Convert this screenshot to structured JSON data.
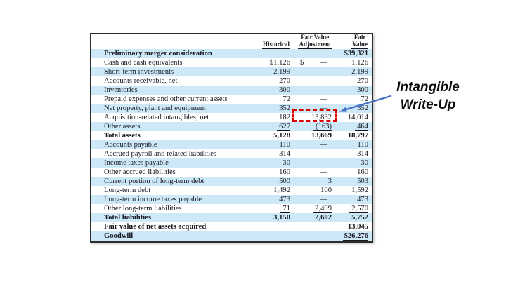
{
  "table": {
    "columns": {
      "historical": "Historical",
      "adjustment_line1": "Fair Value",
      "adjustment_line2": "Adjustment",
      "fair_value_line1": "Fair",
      "fair_value_line2": "Value"
    },
    "rows": [
      {
        "label": "Preliminary merger consideration",
        "h": "",
        "a": "",
        "f": "$39,321",
        "bold": true,
        "u_f": true
      },
      {
        "label": "Cash and cash equivalents",
        "h": "$1,126",
        "a": "—",
        "f": "1,126",
        "pre_a": "$"
      },
      {
        "label": "Short-term investments",
        "h": "2,199",
        "a": "—",
        "f": "2,199"
      },
      {
        "label": "Accounts receivable, net",
        "h": "270",
        "a": "—",
        "f": "270"
      },
      {
        "label": "Inventories",
        "h": "300",
        "a": "—",
        "f": "300"
      },
      {
        "label": "Prepaid expenses and other current assets",
        "h": "72",
        "a": "—",
        "f": "72"
      },
      {
        "label": "Net property, plant and equipment",
        "h": "352",
        "a": "—",
        "f": "352"
      },
      {
        "label": "Acquisition-related intangibles, net",
        "h": "182",
        "a": "13,832",
        "f": "14,014",
        "box_a": true
      },
      {
        "label": "Other assets",
        "h": "627",
        "a": "(163)",
        "f": "464",
        "u_h": true,
        "u_a": true,
        "u_f": true
      },
      {
        "label": "Total assets",
        "h": "5,128",
        "a": "13,669",
        "f": "18,797",
        "bold": true
      },
      {
        "label": "Accounts payable",
        "h": "110",
        "a": "—",
        "f": "110"
      },
      {
        "label": "Accrued payroll and related liabilities",
        "h": "314",
        "a": "",
        "f": "314"
      },
      {
        "label": "Income taxes payable",
        "h": "30",
        "a": "—",
        "f": "30"
      },
      {
        "label": "Other accrued liabilities",
        "h": "160",
        "a": "—",
        "f": "160"
      },
      {
        "label": "Current portion of long-term debt",
        "h": "500",
        "a": "3",
        "f": "503"
      },
      {
        "label": "Long-term debt",
        "h": "1,492",
        "a": "100",
        "f": "1,592"
      },
      {
        "label": "Long-term income taxes payable",
        "h": "473",
        "a": "—",
        "f": "473"
      },
      {
        "label": "Other long-term liabilities",
        "h": "71",
        "a": "2,499",
        "f": "2,570",
        "u_h": true,
        "u_a": true,
        "u_f": true
      },
      {
        "label": "Total liabilities",
        "h": "3,150",
        "a": "2,602",
        "f": "5,752",
        "bold": true,
        "u_f": true
      },
      {
        "label": "Fair value of net assets acquired",
        "h": "",
        "a": "",
        "f": "13,045",
        "bold": true,
        "u_f": true
      },
      {
        "label": "Goodwill",
        "h": "",
        "a": "",
        "f": "$26,276",
        "bold": true,
        "uu_f": true
      }
    ]
  },
  "annotation": {
    "line1": "Intangible",
    "line2": "Write-Up"
  },
  "colors": {
    "row_shade": "#cde8f7",
    "highlight_red": "#dd0000",
    "arrow_blue": "#4472c4",
    "border_dark": "#2d2d2d"
  }
}
